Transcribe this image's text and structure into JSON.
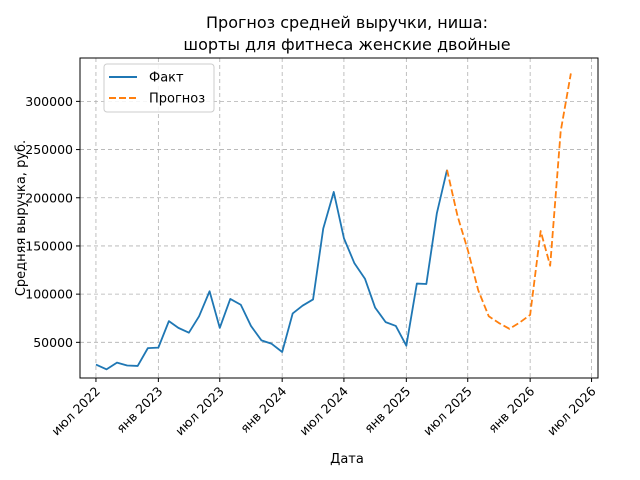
{
  "chart_data": {
    "type": "line",
    "title_line1": "Прогноз средней выручки, ниша:",
    "title_line2": "шорты для фитнеса женские двойные",
    "xlabel": "Дата",
    "ylabel": "Средняя выручка, руб.",
    "x_ticks": [
      {
        "date": "2022-07",
        "label": "июл 2022"
      },
      {
        "date": "2023-01",
        "label": "янв 2023"
      },
      {
        "date": "2023-07",
        "label": "июл 2023"
      },
      {
        "date": "2024-01",
        "label": "янв 2024"
      },
      {
        "date": "2024-07",
        "label": "июл 2024"
      },
      {
        "date": "2025-01",
        "label": "янв 2025"
      },
      {
        "date": "2025-07",
        "label": "июл 2025"
      },
      {
        "date": "2026-01",
        "label": "янв 2026"
      },
      {
        "date": "2026-07",
        "label": "июл 2026"
      }
    ],
    "y_ticks": [
      {
        "value": 50000,
        "label": "50000"
      },
      {
        "value": 100000,
        "label": "100000"
      },
      {
        "value": 150000,
        "label": "150000"
      },
      {
        "value": 200000,
        "label": "200000"
      },
      {
        "value": 250000,
        "label": "250000"
      },
      {
        "value": 300000,
        "label": "300000"
      }
    ],
    "xlim": [
      "2022-05-15",
      "2026-07-20"
    ],
    "ylim": [
      13000,
      345000
    ],
    "grid": true,
    "legend_position": "upper-left",
    "series": [
      {
        "name": "Факт",
        "color": "#1f77b4",
        "style": "solid",
        "points": [
          [
            "2022-07",
            27000
          ],
          [
            "2022-08",
            22000
          ],
          [
            "2022-09",
            29000
          ],
          [
            "2022-10",
            26000
          ],
          [
            "2022-11",
            25500
          ],
          [
            "2022-12",
            44000
          ],
          [
            "2023-01",
            44500
          ],
          [
            "2023-02",
            72000
          ],
          [
            "2023-03",
            65000
          ],
          [
            "2023-04",
            60000
          ],
          [
            "2023-05",
            77000
          ],
          [
            "2023-06",
            103000
          ],
          [
            "2023-07",
            65000
          ],
          [
            "2023-08",
            95000
          ],
          [
            "2023-09",
            89000
          ],
          [
            "2023-10",
            67000
          ],
          [
            "2023-11",
            52000
          ],
          [
            "2023-12",
            48500
          ],
          [
            "2024-01",
            40000
          ],
          [
            "2024-02",
            80000
          ],
          [
            "2024-03",
            88000
          ],
          [
            "2024-04",
            94500
          ],
          [
            "2024-05",
            168000
          ],
          [
            "2024-06",
            206000
          ],
          [
            "2024-07",
            158000
          ],
          [
            "2024-08",
            132000
          ],
          [
            "2024-09",
            116000
          ],
          [
            "2024-10",
            86000
          ],
          [
            "2024-11",
            71000
          ],
          [
            "2024-12",
            67000
          ],
          [
            "2025-01",
            46500
          ],
          [
            "2025-02",
            111000
          ],
          [
            "2025-03",
            110500
          ],
          [
            "2025-04",
            184000
          ],
          [
            "2025-05",
            229000
          ]
        ]
      },
      {
        "name": "Прогноз",
        "color": "#ff7f0e",
        "style": "dashed",
        "points": [
          [
            "2025-05",
            229000
          ],
          [
            "2025-06",
            181000
          ],
          [
            "2025-07",
            146000
          ],
          [
            "2025-08",
            104000
          ],
          [
            "2025-09",
            77000
          ],
          [
            "2025-10",
            70000
          ],
          [
            "2025-11",
            64000
          ],
          [
            "2025-12",
            70500
          ],
          [
            "2026-01",
            78500
          ],
          [
            "2026-02",
            165500
          ],
          [
            "2026-03",
            129500
          ],
          [
            "2026-04",
            269000
          ],
          [
            "2026-05",
            329000
          ]
        ]
      }
    ]
  }
}
